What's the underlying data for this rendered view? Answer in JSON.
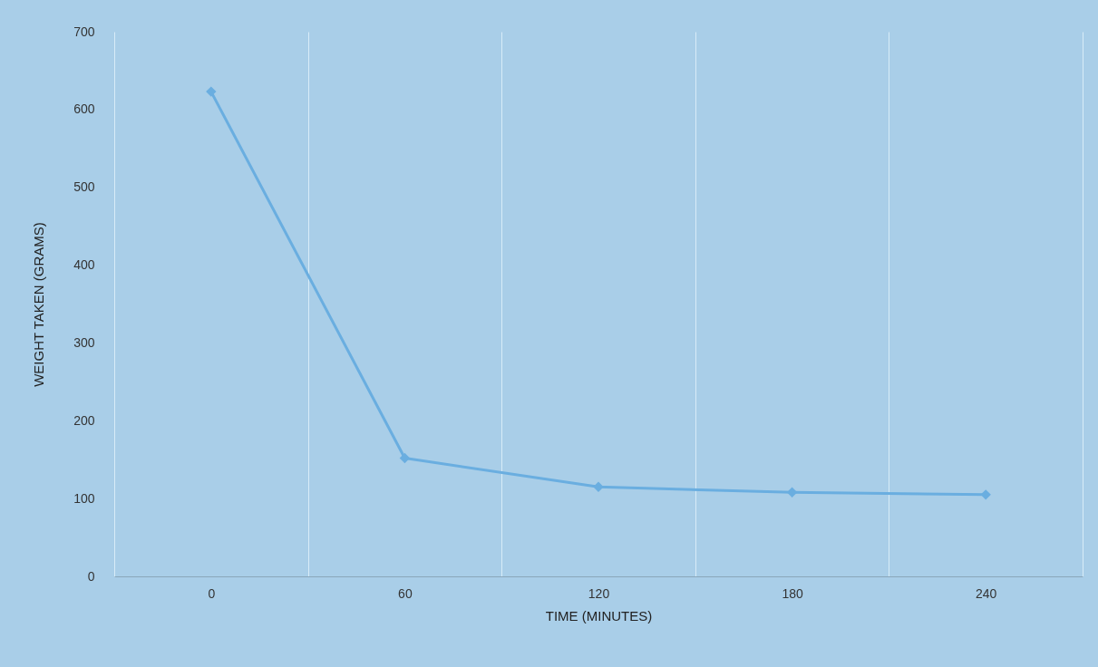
{
  "chart_data": {
    "type": "line",
    "xlabel": "TIME (MINUTES)",
    "ylabel": "WEIGHT TAKEN (GRAMS)",
    "categories": [
      "0",
      "60",
      "120",
      "180",
      "240"
    ],
    "series": [
      {
        "color": "#6aaee0",
        "values": [
          623,
          152,
          115,
          108,
          105
        ]
      }
    ],
    "ylim": [
      0,
      700
    ],
    "yticks": [
      0,
      100,
      200,
      300,
      400,
      500,
      600,
      700
    ],
    "grid": "x",
    "marker": "diamond",
    "line_style": "solid"
  }
}
